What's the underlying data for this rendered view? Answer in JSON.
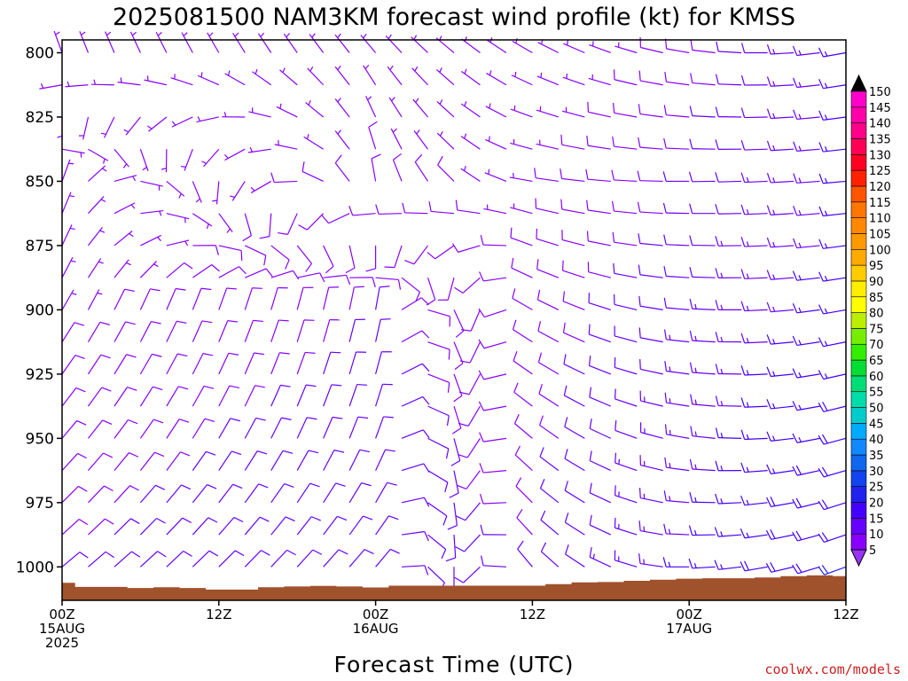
{
  "chart_data": {
    "type": "wind-barb-profile",
    "title": "2025081500 NAM3KM forecast wind profile (kt) for KMSS",
    "xlabel": "Forecast Time (UTC)",
    "ylabel": "",
    "credit": "coolwx.com/models",
    "y_axis": {
      "unit": "hPa",
      "range": [
        1013,
        795
      ],
      "ticks": [
        800,
        825,
        850,
        875,
        900,
        925,
        950,
        975,
        1000
      ]
    },
    "x_axis": {
      "unit": "forecast hour",
      "range": [
        0,
        60
      ],
      "ticks": [
        {
          "hour": 0,
          "lines": [
            "00Z",
            "15AUG",
            "2025"
          ]
        },
        {
          "hour": 12,
          "lines": [
            "12Z"
          ]
        },
        {
          "hour": 24,
          "lines": [
            "00Z",
            "16AUG"
          ]
        },
        {
          "hour": 36,
          "lines": [
            "12Z"
          ]
        },
        {
          "hour": 48,
          "lines": [
            "00Z",
            "17AUG"
          ]
        },
        {
          "hour": 60,
          "lines": [
            "12Z"
          ]
        }
      ]
    },
    "levels_hpa": [
      800,
      812.5,
      825,
      837.5,
      850,
      862.5,
      875,
      887.5,
      900,
      912.5,
      925,
      937.5,
      950,
      962.5,
      975,
      987.5,
      1000
    ],
    "hours": [
      0,
      2,
      4,
      6,
      8,
      10,
      12,
      14,
      16,
      18,
      20,
      22,
      24,
      26,
      28,
      30,
      32,
      34,
      36,
      38,
      40,
      42,
      44,
      46,
      48,
      50,
      52,
      54,
      56,
      58,
      60
    ],
    "wind_speed_kt": {
      "unit": "kt",
      "note_hours": [
        0,
        24,
        36,
        48,
        60
      ],
      "note_levels_hpa": [
        800,
        850,
        900,
        950,
        1000
      ],
      "values_by_level": [
        [
          5,
          6,
          6,
          8,
          15
        ],
        [
          6,
          8,
          7,
          10,
          15
        ],
        [
          7,
          10,
          8,
          12,
          16
        ],
        [
          9,
          11,
          9,
          14,
          18
        ],
        [
          10,
          12,
          10,
          15,
          20
        ]
      ]
    },
    "wind_from_deg": {
      "note_hours": [
        0,
        24,
        36,
        48,
        60
      ],
      "note_levels_hpa": [
        800,
        850,
        900,
        950,
        1000
      ],
      "values_by_level": [
        [
          340,
          320,
          300,
          280,
          260
        ],
        [
          20,
          350,
          280,
          270,
          265
        ],
        [
          30,
          10,
          300,
          275,
          260
        ],
        [
          40,
          20,
          310,
          280,
          255
        ],
        [
          50,
          40,
          320,
          270,
          250
        ]
      ]
    },
    "surface_pressure_hpa": {
      "hours": [
        0,
        2,
        4,
        6,
        8,
        10,
        12,
        14,
        16,
        18,
        20,
        22,
        24,
        26,
        28,
        30,
        32,
        34,
        36,
        38,
        40,
        42,
        44,
        46,
        48,
        50,
        52,
        54,
        56,
        58,
        60
      ],
      "values": [
        1006.2,
        1007.8,
        1007.8,
        1008.2,
        1007.9,
        1008.2,
        1008.8,
        1008.8,
        1007.9,
        1007.6,
        1007.4,
        1007.6,
        1008.0,
        1007.3,
        1007.3,
        1007.3,
        1007.3,
        1007.3,
        1007.3,
        1006.7,
        1006.0,
        1005.9,
        1005.4,
        1005.0,
        1004.6,
        1004.4,
        1004.4,
        1004.1,
        1003.6,
        1003.3,
        1003.6
      ]
    },
    "colorbar": {
      "unit": "kt",
      "labels": [
        5,
        10,
        15,
        20,
        25,
        30,
        35,
        40,
        45,
        50,
        55,
        60,
        65,
        70,
        75,
        80,
        85,
        90,
        95,
        100,
        105,
        110,
        115,
        120,
        125,
        130,
        135,
        140,
        145,
        150
      ],
      "colors": [
        "#8800ff",
        "#6600ff",
        "#4400ff",
        "#2222ee",
        "#1144ee",
        "#1166ee",
        "#1188ff",
        "#00aaff",
        "#00cccc",
        "#00ddaa",
        "#00dd77",
        "#00dd33",
        "#33ee00",
        "#77ee00",
        "#bbee00",
        "#ffff00",
        "#ffee00",
        "#ffcc00",
        "#ffaa00",
        "#ff9900",
        "#ff8800",
        "#ff7700",
        "#ff5500",
        "#ff2200",
        "#ff0022",
        "#ff0055",
        "#ff0088",
        "#ff00aa",
        "#ff00cc",
        "#ff00ee"
      ],
      "under_color": "#9933ff",
      "over_color": "#000000"
    },
    "ground_color": "#a0522d"
  }
}
